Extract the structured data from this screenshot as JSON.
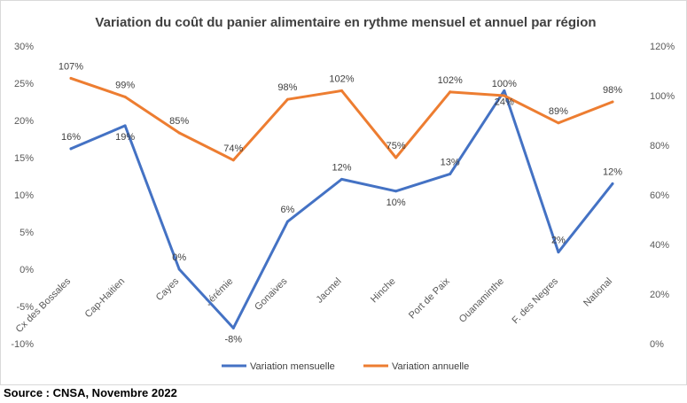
{
  "chart_data": {
    "type": "line",
    "title": "Variation du coût du panier alimentaire en rythme mensuel et annuel par région",
    "categories": [
      "Cx des Bossales",
      "Cap-Haitien",
      "Cayes",
      "Jérémie",
      "Gonaives",
      "Jacmel",
      "Hinche",
      "Port de Paix",
      "Ouanaminthe",
      "F. des Negres",
      "National"
    ],
    "left_axis": {
      "ticks": [
        "30%",
        "25%",
        "20%",
        "15%",
        "10%",
        "5%",
        "0%",
        "-5%",
        "-10%"
      ],
      "ylim": [
        -10,
        30
      ]
    },
    "right_axis": {
      "ticks": [
        "120%",
        "100%",
        "80%",
        "60%",
        "40%",
        "20%",
        "0%"
      ],
      "ylim": [
        0,
        120
      ]
    },
    "series": [
      {
        "name": "Variation mensuelle",
        "axis": "left",
        "color": "#4472C4",
        "values": [
          16.2,
          19.3,
          0,
          -7.9,
          6.4,
          12.1,
          10.5,
          12.8,
          24,
          2.3,
          11.5
        ],
        "labels": [
          "16%",
          "19%",
          "0%",
          "-8%",
          "6%",
          "12%",
          "10%",
          "13%",
          "24%",
          "2%",
          "12%"
        ]
      },
      {
        "name": "Variation annuelle",
        "axis": "right",
        "color": "#ED7D31",
        "values": [
          107,
          99.5,
          85,
          74,
          98.5,
          102,
          75,
          101.5,
          100,
          89,
          97.5
        ],
        "labels": [
          "107%",
          "99%",
          "85%",
          "74%",
          "98%",
          "102%",
          "75%",
          "102%",
          "100%",
          "89%",
          "98%"
        ]
      }
    ],
    "gridlines": false,
    "legend": "bottom"
  },
  "source": "Source : CNSA, Novembre 2022"
}
